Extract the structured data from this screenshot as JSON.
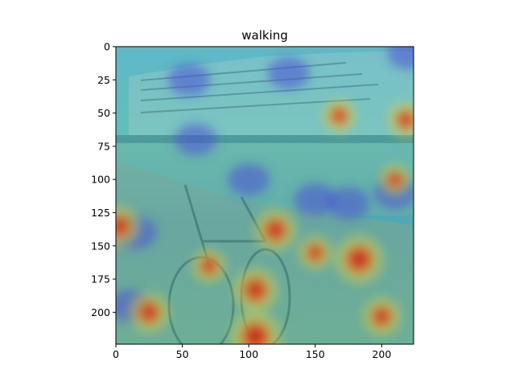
{
  "chart_data": {
    "type": "heatmap",
    "title": "walking",
    "xlabel": "",
    "ylabel": "",
    "xlim": [
      0,
      224
    ],
    "ylim": [
      224,
      0
    ],
    "x_ticks": [
      0,
      50,
      100,
      150,
      200
    ],
    "y_ticks": [
      0,
      25,
      50,
      75,
      100,
      125,
      150,
      175,
      200
    ],
    "grid": false,
    "colormap": "jet",
    "background_image": "photo of a bicycle parked by a railing on a harbour promenade with a large cruise ship behind",
    "hotspots": [
      {
        "x": 105,
        "y": 218,
        "intensity": 1.0
      },
      {
        "x": 183,
        "y": 160,
        "intensity": 0.95
      },
      {
        "x": 105,
        "y": 183,
        "intensity": 0.85
      },
      {
        "x": 120,
        "y": 138,
        "intensity": 0.8
      },
      {
        "x": 25,
        "y": 200,
        "intensity": 0.75
      },
      {
        "x": 3,
        "y": 135,
        "intensity": 0.75
      },
      {
        "x": 200,
        "y": 203,
        "intensity": 0.7
      },
      {
        "x": 70,
        "y": 165,
        "intensity": 0.6
      },
      {
        "x": 150,
        "y": 155,
        "intensity": 0.6
      },
      {
        "x": 218,
        "y": 55,
        "intensity": 0.65
      },
      {
        "x": 168,
        "y": 52,
        "intensity": 0.6
      },
      {
        "x": 210,
        "y": 100,
        "intensity": 0.55
      }
    ],
    "coldspots": [
      {
        "x": 210,
        "y": 110
      },
      {
        "x": 175,
        "y": 118
      },
      {
        "x": 55,
        "y": 25
      },
      {
        "x": 130,
        "y": 20
      },
      {
        "x": 220,
        "y": 5
      },
      {
        "x": 10,
        "y": 195
      },
      {
        "x": 15,
        "y": 140
      },
      {
        "x": 100,
        "y": 100
      },
      {
        "x": 150,
        "y": 115
      },
      {
        "x": 60,
        "y": 70
      }
    ]
  }
}
